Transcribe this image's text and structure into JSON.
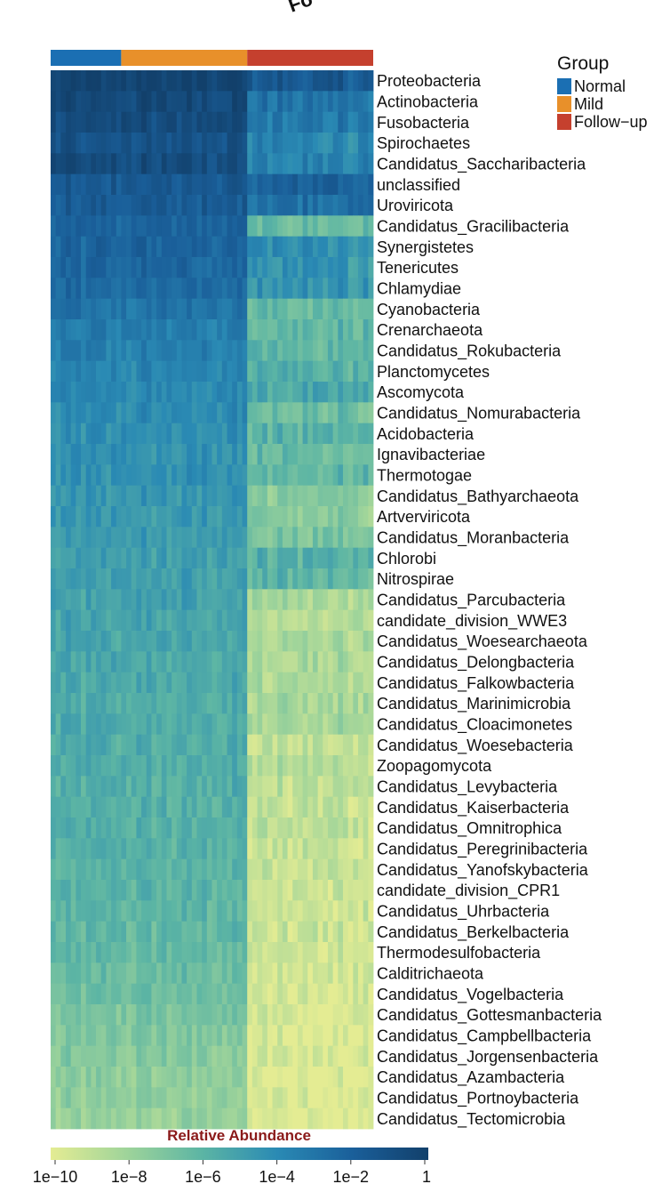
{
  "figure_title_fragment": "Fo",
  "legend": {
    "title": "Group",
    "items": [
      {
        "label": "Normal",
        "color": "#1b6fb3"
      },
      {
        "label": "Mild",
        "color": "#e8902a"
      },
      {
        "label": "Follow−up",
        "color": "#c5402e"
      }
    ]
  },
  "colorbar": {
    "title": "Relative Abundance",
    "ticks": [
      "1e−10",
      "1e−8",
      "1e−6",
      "1e−4",
      "1e−2",
      "1"
    ],
    "colors": [
      "#e4ec93",
      "#9fd49a",
      "#5cb5a4",
      "#2a8ab4",
      "#1a5f9a",
      "#12406b"
    ]
  },
  "chart_data": {
    "type": "heatmap",
    "title": "",
    "xlabel": "",
    "ylabel": "",
    "value_scale": "log10",
    "value_range": [
      "1e-10",
      "1"
    ],
    "column_groups": [
      {
        "name": "Normal",
        "columns": 14
      },
      {
        "name": "Mild",
        "columns": 25
      },
      {
        "name": "Follow-up",
        "columns": 25
      }
    ],
    "rows": [
      "Proteobacteria",
      "Actinobacteria",
      "Fusobacteria",
      "Spirochaetes",
      "Candidatus_Saccharibacteria",
      "unclassified",
      "Uroviricota",
      "Candidatus_Gracilibacteria",
      "Synergistetes",
      "Tenericutes",
      "Chlamydiae",
      "Cyanobacteria",
      "Crenarchaeota",
      "Candidatus_Rokubacteria",
      "Planctomycetes",
      "Ascomycota",
      "Candidatus_Nomurabacteria",
      "Acidobacteria",
      "Ignavibacteriae",
      "Thermotogae",
      "Candidatus_Bathyarchaeota",
      "Artverviricota",
      "Candidatus_Moranbacteria",
      "Chlorobi",
      "Nitrospirae",
      "Candidatus_Parcubacteria",
      "candidate_division_WWE3",
      "Candidatus_Woesearchaeota",
      "Candidatus_Delongbacteria",
      "Candidatus_Falkowbacteria",
      "Candidatus_Marinimicrobia",
      "Candidatus_Cloacimonetes",
      "Candidatus_Woesebacteria",
      "Zoopagomycota",
      "Candidatus_Levybacteria",
      "Candidatus_Kaiserbacteria",
      "Candidatus_Omnitrophica",
      "Candidatus_Peregrinibacteria",
      "Candidatus_Yanofskybacteria",
      "candidate_division_CPR1",
      "Candidatus_Uhrbacteria",
      "Candidatus_Berkelbacteria",
      "Thermodesulfobacteria",
      "Calditrichaeota",
      "Candidatus_Vogelbacteria",
      "Candidatus_Gottesmanbacteria",
      "Candidatus_Campbellbacteria",
      "Candidatus_Jorgensenbacteria",
      "Candidatus_Azambacteria",
      "Candidatus_Portnoybacteria",
      "Candidatus_Tectomicrobia"
    ],
    "approx_log10_level_by_group": {
      "Normal_Mild": [
        -0.3,
        -0.6,
        -0.8,
        -1.2,
        -0.9,
        -1.6,
        -1.8,
        -2.2,
        -2.3,
        -2.4,
        -2.5,
        -2.9,
        -3.4,
        -3.6,
        -3.8,
        -3.9,
        -4.1,
        -4.2,
        -4.3,
        -4.4,
        -4.6,
        -4.7,
        -4.8,
        -4.9,
        -5.0,
        -5.1,
        -5.2,
        -5.3,
        -5.4,
        -5.4,
        -5.5,
        -5.5,
        -5.6,
        -5.7,
        -5.7,
        -5.8,
        -5.8,
        -5.9,
        -6.0,
        -6.0,
        -6.1,
        -6.2,
        -6.3,
        -6.4,
        -6.6,
        -6.9,
        -7.1,
        -7.3,
        -7.5,
        -7.6,
        -7.8
      ],
      "Follow-up": [
        -1.6,
        -3.0,
        -3.3,
        -3.8,
        -3.5,
        -2.2,
        -2.6,
        -6.4,
        -4.2,
        -4.5,
        -4.4,
        -6.3,
        -6.0,
        -6.1,
        -5.7,
        -5.4,
        -6.5,
        -5.9,
        -6.3,
        -6.1,
        -7.3,
        -7.4,
        -6.9,
        -5.8,
        -6.0,
        -8.2,
        -8.5,
        -8.3,
        -8.4,
        -8.5,
        -8.2,
        -8.3,
        -8.9,
        -8.6,
        -8.9,
        -9.0,
        -8.9,
        -9.1,
        -9.1,
        -9.3,
        -9.2,
        -9.2,
        -9.4,
        -9.3,
        -9.5,
        -9.6,
        -9.7,
        -9.7,
        -9.8,
        -9.8,
        -9.8
      ]
    }
  }
}
